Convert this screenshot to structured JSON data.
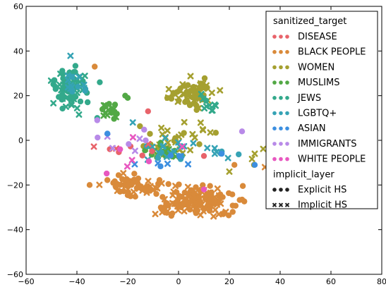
{
  "chart_data": {
    "type": "scatter",
    "title": "",
    "xlabel": "",
    "ylabel": "",
    "xlim": [
      -60,
      80
    ],
    "ylim": [
      -60,
      60
    ],
    "xticks": [
      "−60",
      "−40",
      "−20",
      "0",
      "20",
      "40",
      "60",
      "80"
    ],
    "yticks": [
      "−60",
      "−40",
      "−20",
      "0",
      "20",
      "40",
      "60"
    ],
    "grid": false,
    "legend_placement": "top-right",
    "legend": {
      "hue_title": "sanitized_target",
      "style_title": "implicit_layer"
    },
    "series": [
      {
        "name": "DISEASE",
        "color": "#e8636a"
      },
      {
        "name": "BLACK PEOPLE",
        "color": "#d98a3a"
      },
      {
        "name": "WOMEN",
        "color": "#a5a030"
      },
      {
        "name": "MUSLIMS",
        "color": "#52a845"
      },
      {
        "name": "JEWS",
        "color": "#33a98b"
      },
      {
        "name": "LGBTQ+",
        "color": "#36a3b5"
      },
      {
        "name": "ASIAN",
        "color": "#3c8fe0"
      },
      {
        "name": "IMMIGRANTS",
        "color": "#b88ae8"
      },
      {
        "name": "WHITE PEOPLE",
        "color": "#e858c0"
      }
    ],
    "styles": [
      {
        "name": "Explicit HS",
        "marker": "circle"
      },
      {
        "name": "Implicit HS",
        "marker": "x"
      }
    ],
    "clusters": [
      {
        "series": 1,
        "cx": 7.5,
        "cy": -27,
        "rx": 14,
        "ry": 6,
        "n": 150,
        "seed": 11,
        "explicit_ratio": 0.65
      },
      {
        "series": 1,
        "cx": -18,
        "cy": -21,
        "rx": 9,
        "ry": 5,
        "n": 60,
        "seed": 12,
        "explicit_ratio": 0.6
      },
      {
        "series": 4,
        "cx": -43,
        "cy": 23,
        "rx": 7,
        "ry": 8,
        "n": 70,
        "seed": 13,
        "explicit_ratio": 0.55
      },
      {
        "series": 5,
        "cx": -40,
        "cy": 27,
        "rx": 4,
        "ry": 7,
        "n": 15,
        "seed": 14,
        "explicit_ratio": 0.3
      },
      {
        "series": 2,
        "cx": 5,
        "cy": 21,
        "rx": 8,
        "ry": 6,
        "n": 70,
        "seed": 15,
        "explicit_ratio": 0.5
      },
      {
        "series": 2,
        "cx": 0,
        "cy": 0,
        "rx": 15,
        "ry": 8,
        "n": 35,
        "seed": 16,
        "explicit_ratio": 0.2
      },
      {
        "series": 3,
        "cx": -27,
        "cy": 13,
        "rx": 4,
        "ry": 3,
        "n": 20,
        "seed": 17,
        "explicit_ratio": 0.5
      },
      {
        "series": 3,
        "cx": -8,
        "cy": -5,
        "rx": 7,
        "ry": 4,
        "n": 18,
        "seed": 18,
        "explicit_ratio": 0.5
      },
      {
        "series": 5,
        "cx": 0,
        "cy": -5,
        "rx": 18,
        "ry": 4,
        "n": 25,
        "seed": 19,
        "explicit_ratio": 0.3
      },
      {
        "series": 4,
        "cx": 10,
        "cy": 16,
        "rx": 4,
        "ry": 5,
        "n": 10,
        "seed": 20,
        "explicit_ratio": 0.3
      },
      {
        "series": 0,
        "cx": -18,
        "cy": -4,
        "rx": 10,
        "ry": 3,
        "n": 8,
        "seed": 21,
        "explicit_ratio": 0.6
      },
      {
        "series": 6,
        "cx": -5,
        "cy": -10,
        "rx": 15,
        "ry": 6,
        "n": 8,
        "seed": 22,
        "explicit_ratio": 0.5
      },
      {
        "series": 7,
        "cx": -15,
        "cy": 0,
        "rx": 18,
        "ry": 6,
        "n": 8,
        "seed": 23,
        "explicit_ratio": 0.6
      },
      {
        "series": 8,
        "cx": -15,
        "cy": -8,
        "rx": 15,
        "ry": 8,
        "n": 6,
        "seed": 24,
        "explicit_ratio": 0.7
      },
      {
        "series": 2,
        "cx": 35,
        "cy": -10,
        "rx": 6,
        "ry": 6,
        "n": 8,
        "seed": 25,
        "explicit_ratio": 0.2
      }
    ],
    "extra_points": [
      {
        "series": 0,
        "x": -12,
        "y": 13,
        "marker": "circle"
      },
      {
        "series": 0,
        "x": 10,
        "y": -7,
        "marker": "circle"
      },
      {
        "series": 1,
        "x": -35,
        "y": -20,
        "marker": "circle"
      },
      {
        "series": 1,
        "x": -33,
        "y": 33,
        "marker": "circle"
      },
      {
        "series": 1,
        "x": 22,
        "y": -11,
        "marker": "circle"
      },
      {
        "series": 1,
        "x": 34,
        "y": -12,
        "marker": "x"
      },
      {
        "series": 1,
        "x": 36,
        "y": -15,
        "marker": "circle"
      },
      {
        "series": 1,
        "x": 38,
        "y": -12,
        "marker": "x"
      },
      {
        "series": 2,
        "x": 20,
        "y": -14,
        "marker": "x"
      },
      {
        "series": 2,
        "x": 30,
        "y": -6,
        "marker": "x"
      },
      {
        "series": 3,
        "x": -21,
        "y": 20,
        "marker": "circle"
      },
      {
        "series": 3,
        "x": -20,
        "y": 19,
        "marker": "circle"
      },
      {
        "series": 3,
        "x": -25,
        "y": 16,
        "marker": "circle"
      },
      {
        "series": 4,
        "x": -31,
        "y": 26,
        "marker": "circle"
      },
      {
        "series": 4,
        "x": -32,
        "y": 10,
        "marker": "circle"
      },
      {
        "series": 5,
        "x": -18,
        "y": 8,
        "marker": "x"
      },
      {
        "series": 5,
        "x": 17,
        "y": -5,
        "marker": "circle"
      },
      {
        "series": 6,
        "x": -28,
        "y": 3,
        "marker": "circle"
      },
      {
        "series": 6,
        "x": 30,
        "y": -11,
        "marker": "circle"
      },
      {
        "series": 6,
        "x": 17,
        "y": -6,
        "marker": "circle"
      },
      {
        "series": 7,
        "x": 25,
        "y": 4,
        "marker": "circle"
      },
      {
        "series": 7,
        "x": -32,
        "y": 9,
        "marker": "circle"
      },
      {
        "series": 8,
        "x": 10,
        "y": -22,
        "marker": "circle"
      },
      {
        "series": 8,
        "x": -23,
        "y": -4,
        "marker": "circle"
      }
    ]
  }
}
